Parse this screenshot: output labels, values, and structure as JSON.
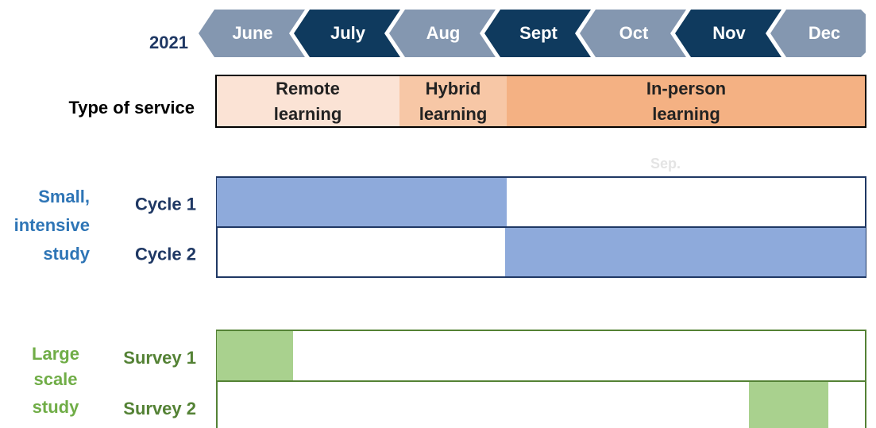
{
  "year": "2021",
  "months": [
    "June",
    "July",
    "Aug",
    "Sept",
    "Oct",
    "Nov",
    "Dec"
  ],
  "service": {
    "label": "Type of service",
    "segments": [
      {
        "lines": [
          "Remote",
          "learning"
        ]
      },
      {
        "lines": [
          "Hybrid",
          "learning"
        ]
      },
      {
        "lines": [
          "In-person",
          "learning"
        ]
      }
    ]
  },
  "note": "Sep.",
  "groups": [
    {
      "lines": [
        "Small,",
        "intensive",
        "study"
      ],
      "rows": [
        "Cycle 1",
        "Cycle 2"
      ]
    },
    {
      "lines": [
        "Large",
        "scale",
        "study"
      ],
      "rows": [
        "Survey 1",
        "Survey 2"
      ]
    }
  ]
}
